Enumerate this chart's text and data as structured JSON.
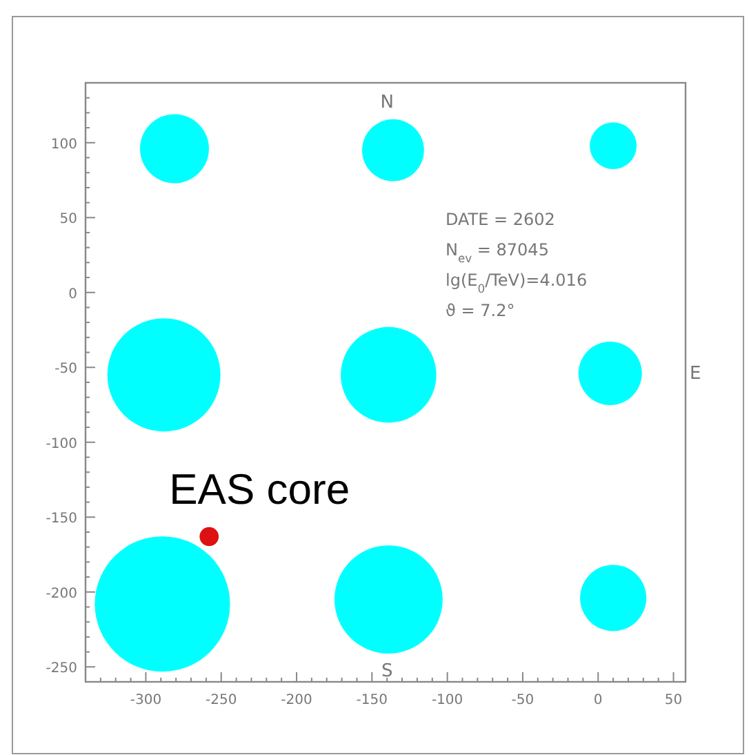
{
  "chart_data": {
    "type": "bubble",
    "xlim": [
      -340,
      58
    ],
    "ylim": [
      -260,
      140
    ],
    "xticks": [
      -300,
      -250,
      -200,
      -150,
      -100,
      -50,
      0,
      50,
      {
        "value": -330,
        "label": null
      },
      {
        "value": -320,
        "label": null
      },
      {
        "value": -310,
        "label": null
      },
      {
        "value": -290,
        "label": null
      },
      {
        "value": -280,
        "label": null
      },
      {
        "value": -270,
        "label": null
      },
      {
        "value": -260,
        "label": null
      },
      {
        "value": -240,
        "label": null
      },
      {
        "value": -230,
        "label": null
      },
      {
        "value": -220,
        "label": null
      },
      {
        "value": -210,
        "label": null
      },
      {
        "value": -190,
        "label": null
      },
      {
        "value": -180,
        "label": null
      },
      {
        "value": -170,
        "label": null
      },
      {
        "value": -160,
        "label": null
      },
      {
        "value": -140,
        "label": null
      },
      {
        "value": -130,
        "label": null
      },
      {
        "value": -120,
        "label": null
      },
      {
        "value": -110,
        "label": null
      },
      {
        "value": -90,
        "label": null
      },
      {
        "value": -80,
        "label": null
      },
      {
        "value": -70,
        "label": null
      },
      {
        "value": -60,
        "label": null
      },
      {
        "value": -40,
        "label": null
      },
      {
        "value": -30,
        "label": null
      },
      {
        "value": -20,
        "label": null
      },
      {
        "value": -10,
        "label": null
      },
      {
        "value": 10,
        "label": null
      },
      {
        "value": 20,
        "label": null
      },
      {
        "value": 30,
        "label": null
      },
      {
        "value": 40,
        "label": null
      }
    ],
    "yticks": [
      -250,
      -200,
      -150,
      -100,
      -50,
      0,
      50,
      100,
      {
        "value": -240,
        "label": null
      },
      {
        "value": -230,
        "label": null
      },
      {
        "value": -220,
        "label": null
      },
      {
        "value": -210,
        "label": null
      },
      {
        "value": -190,
        "label": null
      },
      {
        "value": -180,
        "label": null
      },
      {
        "value": -170,
        "label": null
      },
      {
        "value": -160,
        "label": null
      },
      {
        "value": -140,
        "label": null
      },
      {
        "value": -130,
        "label": null
      },
      {
        "value": -120,
        "label": null
      },
      {
        "value": -110,
        "label": null
      },
      {
        "value": -90,
        "label": null
      },
      {
        "value": -80,
        "label": null
      },
      {
        "value": -70,
        "label": null
      },
      {
        "value": -60,
        "label": null
      },
      {
        "value": -40,
        "label": null
      },
      {
        "value": -30,
        "label": null
      },
      {
        "value": -20,
        "label": null
      },
      {
        "value": -10,
        "label": null
      },
      {
        "value": 10,
        "label": null
      },
      {
        "value": 20,
        "label": null
      },
      {
        "value": 30,
        "label": null
      },
      {
        "value": 40,
        "label": null
      },
      {
        "value": 60,
        "label": null
      },
      {
        "value": 70,
        "label": null
      },
      {
        "value": 80,
        "label": null
      },
      {
        "value": 90,
        "label": null
      },
      {
        "value": 110,
        "label": null
      },
      {
        "value": 120,
        "label": null
      },
      {
        "value": 130,
        "label": null
      }
    ],
    "grid": false,
    "series": [
      {
        "color": "#00ffff",
        "x": [
          -281,
          -136,
          10,
          -288,
          -139,
          8,
          -289,
          -139,
          10
        ],
        "values": [
          96,
          95,
          98,
          -55,
          -55,
          -54,
          -208,
          -205,
          -204
        ],
        "sizes": [
          0.26,
          0.21,
          0.12,
          0.7,
          0.5,
          0.22,
          1,
          0.64,
          0.24
        ]
      },
      {
        "color": "#dd1111",
        "x": [
          -258
        ],
        "values": [
          -163
        ],
        "sizes": [
          0.02
        ]
      }
    ],
    "annotations": [
      "N",
      "S",
      "E",
      "DATE = 2602",
      "N$_{ev}$ = 87045",
      "lg(E$_{0}$/TeV)=4.016",
      "ϑ = 7.2°",
      {
        "text": "EAS core",
        "x": -258,
        "y": -163
      }
    ]
  }
}
